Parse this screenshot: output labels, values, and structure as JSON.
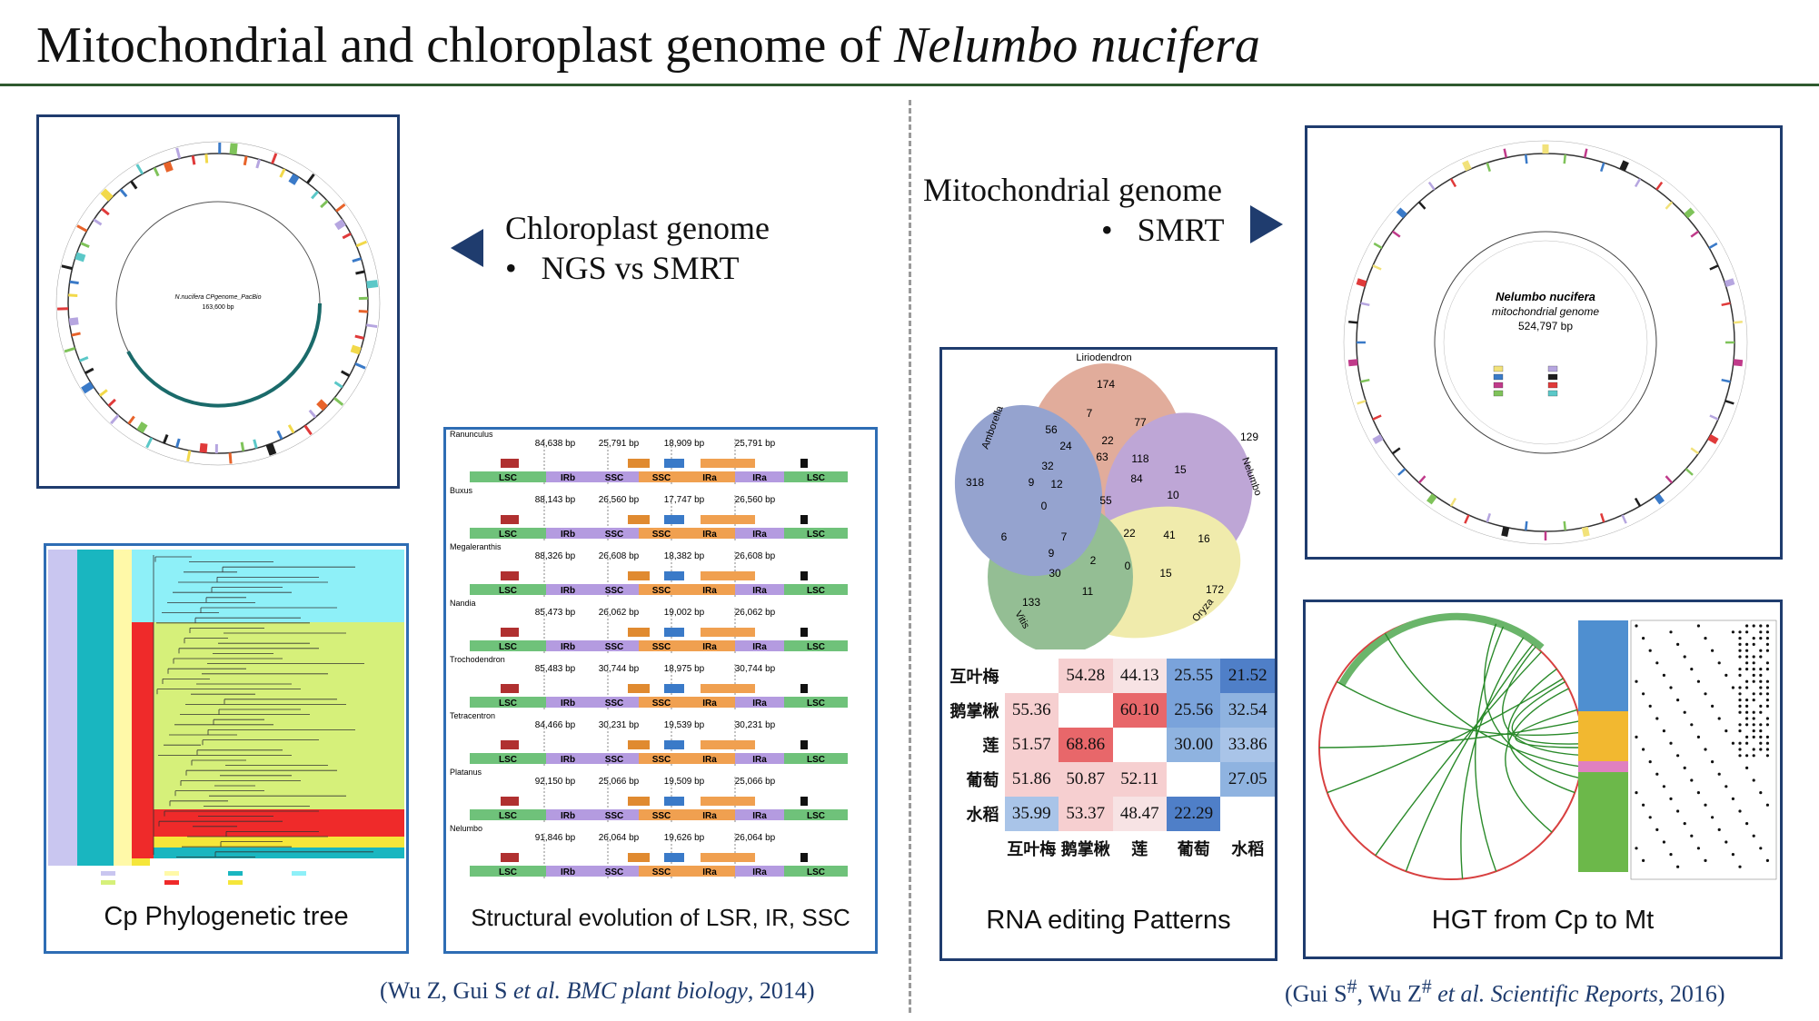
{
  "title": {
    "main": "Mitochondrial and chloroplast genome of ",
    "species": "Nelumbo nucifera"
  },
  "left": {
    "heading": "Chloroplast genome",
    "bullet": "NGS vs SMRT",
    "cp_map": {
      "center_title": "N.nucifera CPgenome_PacBio",
      "center_bp": "163,600 bp"
    },
    "tree_caption": "Cp Phylogenetic tree",
    "struct_caption": "Structural evolution of LSR, IR, SSC",
    "struct_species": [
      "Ranunculus",
      "Buxus",
      "Megaleranthis",
      "Nandia",
      "Trochodendron",
      "Tetracentron",
      "Platanus",
      "Nelumbo"
    ],
    "struct_sizes": [
      [
        "84,638 bp",
        "25,791 bp",
        "18,909 bp",
        "25,791 bp"
      ],
      [
        "88,143 bp",
        "26,560 bp",
        "17,747 bp",
        "26,560 bp"
      ],
      [
        "88,326 bp",
        "26,608 bp",
        "18,382 bp",
        "26,608 bp"
      ],
      [
        "85,473 bp",
        "26,062 bp",
        "19,002 bp",
        "26,062 bp"
      ],
      [
        "85,483 bp",
        "30,744 bp",
        "18,975 bp",
        "30,744 bp"
      ],
      [
        "84,466 bp",
        "30,231 bp",
        "19,539 bp",
        "30,231 bp"
      ],
      [
        "92,150 bp",
        "25,066 bp",
        "19,509 bp",
        "25,066 bp"
      ],
      [
        "91,846 bp",
        "26,064 bp",
        "19,626 bp",
        "26,064 bp"
      ]
    ],
    "struct_regions": [
      "LSC",
      "IRb",
      "SSC",
      "SSC",
      "IRa",
      "IRa",
      "LSC"
    ],
    "reference": {
      "authors": "(Wu Z, Gui S ",
      "etal": "et al.",
      "journal": " BMC plant biology",
      "year": ", 2014)"
    }
  },
  "right": {
    "heading": "Mitochondrial genome",
    "bullet": "SMRT",
    "mt_map": {
      "line1": "Nelumbo nucifera",
      "line2": "mitochondrial genome",
      "bp": "524,797 bp"
    },
    "venn": {
      "labels": [
        "Liriodendron",
        "Nelumbo",
        "Oryza",
        "Vitis",
        "Amborella"
      ],
      "numbers": [
        "174",
        "129",
        "172",
        "133",
        "318",
        "56",
        "7",
        "77",
        "22",
        "24",
        "63",
        "118",
        "15",
        "32",
        "12",
        "84",
        "10",
        "9",
        "55",
        "0",
        "6",
        "7",
        "22",
        "41",
        "16",
        "9",
        "2",
        "0",
        "15",
        "30",
        "11"
      ]
    },
    "heatmap": {
      "rows": [
        "互叶梅",
        "鹅掌楸",
        "莲",
        "葡萄",
        "水稻"
      ],
      "cols": [
        "互叶梅",
        "鹅掌楸",
        "莲",
        "葡萄",
        "水稻"
      ],
      "cells": [
        [
          "",
          "54.28",
          "44.13",
          "25.55",
          "21.52"
        ],
        [
          "55.36",
          "",
          "60.10",
          "25.56",
          "32.54"
        ],
        [
          "51.57",
          "68.86",
          "",
          "30.00",
          "33.86"
        ],
        [
          "51.86",
          "50.87",
          "52.11",
          "",
          "27.05"
        ],
        [
          "35.99",
          "53.37",
          "48.47",
          "22.29",
          ""
        ]
      ]
    },
    "venn_caption": "RNA editing Patterns",
    "hgt_caption": "HGT from Cp to Mt",
    "reference": {
      "authors": "(Gui S",
      "sup": "#",
      "mid": ", Wu Z",
      "sup2": "#",
      "etal": " et al.",
      "journal": " Scientific Reports",
      "year": ", 2016)"
    }
  },
  "colors": {
    "rule": "#2f5a2f",
    "frame": "#1f3c6e",
    "frame_blue": "#2e6db4",
    "arrow": "#1f3c6e"
  }
}
